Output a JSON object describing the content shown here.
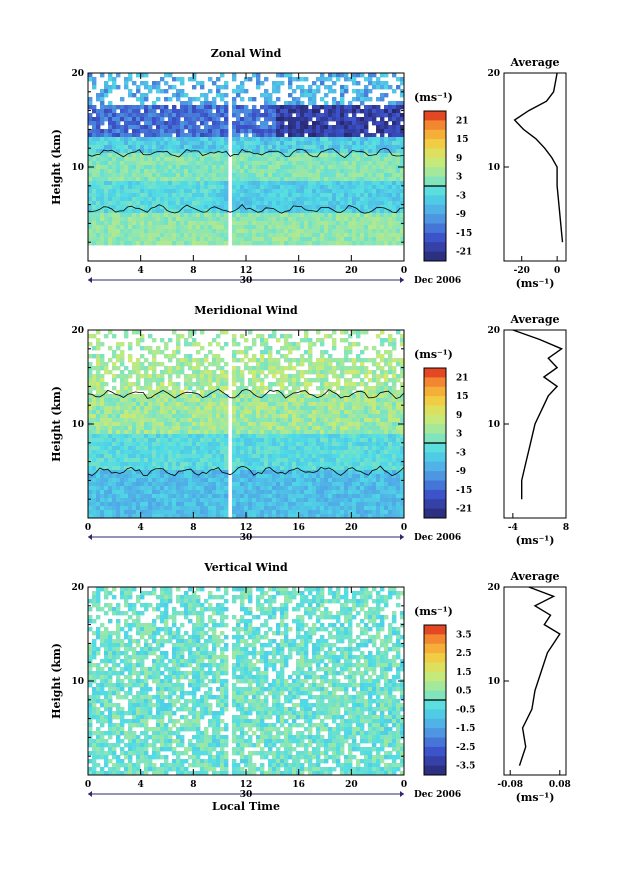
{
  "chart_data": [
    {
      "type": "heatmap",
      "title": "Zonal Wind",
      "ylabel": "Height (km)",
      "yticks": [
        "20",
        "10"
      ],
      "xticks": [
        "0",
        "4",
        "8",
        "12",
        "16",
        "20",
        "0"
      ],
      "date_label": "Dec 2006",
      "day_label": "30",
      "colorbar": {
        "unit": "(ms⁻¹)",
        "ticks": [
          "21",
          "15",
          "9",
          "3",
          "-3",
          "-9",
          "-15",
          "-21"
        ],
        "range": [
          -24,
          24
        ]
      },
      "average": {
        "title": "Average",
        "xticks": [
          "-20",
          "0"
        ],
        "xlabel": "(ms⁻¹)",
        "xlim": [
          -30,
          5
        ],
        "height": [
          2,
          4,
          6,
          8,
          10,
          11,
          12,
          13,
          14,
          15,
          16,
          17,
          18,
          19,
          20
        ],
        "value": [
          3,
          2,
          1,
          0,
          0,
          -3,
          -7,
          -12,
          -19,
          -24,
          -16,
          -6,
          -2,
          -1,
          0
        ]
      }
    },
    {
      "type": "heatmap",
      "title": "Meridional Wind",
      "ylabel": "Height (km)",
      "yticks": [
        "20",
        "10"
      ],
      "xticks": [
        "0",
        "4",
        "8",
        "12",
        "16",
        "20",
        "0"
      ],
      "date_label": "Dec 2006",
      "day_label": "30",
      "colorbar": {
        "unit": "(ms⁻¹)",
        "ticks": [
          "21",
          "15",
          "9",
          "3",
          "-3",
          "-9",
          "-15",
          "-21"
        ],
        "range": [
          -24,
          24
        ]
      },
      "average": {
        "title": "Average",
        "xticks": [
          "-4",
          "8"
        ],
        "xlabel": "(ms⁻¹)",
        "xlim": [
          -6,
          8
        ],
        "height": [
          2,
          4,
          6,
          8,
          10,
          12,
          13,
          14,
          15,
          16,
          17,
          18,
          19,
          20
        ],
        "value": [
          -2,
          -2,
          -1,
          0,
          1,
          3,
          4,
          6,
          3,
          6,
          4,
          7,
          2,
          -4
        ]
      }
    },
    {
      "type": "heatmap",
      "title": "Vertical Wind",
      "ylabel": "Height (km)",
      "xlabel": "Local Time",
      "yticks": [
        "20",
        "10"
      ],
      "xticks": [
        "0",
        "4",
        "8",
        "12",
        "16",
        "20",
        "0"
      ],
      "date_label": "Dec 2006",
      "day_label": "30",
      "colorbar": {
        "unit": "(ms⁻¹)",
        "ticks": [
          "3.5",
          "2.5",
          "1.5",
          "0.5",
          "-0.5",
          "-1.5",
          "-2.5",
          "-3.5"
        ],
        "range": [
          -4,
          4
        ]
      },
      "average": {
        "title": "Average",
        "xticks": [
          "-0.08",
          "0.08"
        ],
        "xlabel": "(ms⁻¹)",
        "xlim": [
          -0.1,
          0.1
        ],
        "height": [
          1,
          3,
          5,
          7,
          9,
          11,
          13,
          15,
          16,
          17,
          18,
          19,
          20
        ],
        "value": [
          -0.05,
          -0.03,
          -0.04,
          -0.01,
          0.0,
          0.02,
          0.04,
          0.08,
          0.03,
          0.05,
          0.0,
          0.06,
          -0.02
        ]
      }
    }
  ]
}
